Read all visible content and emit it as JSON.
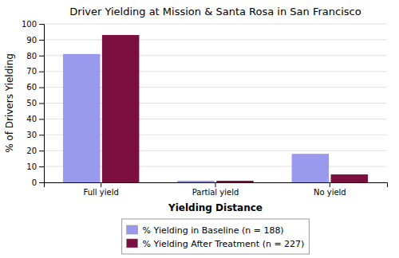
{
  "chart_data": {
    "type": "bar",
    "title": "Driver Yielding at Mission & Santa Rosa in San Francisco",
    "xlabel": "Yielding Distance",
    "ylabel": "% of Drivers Yielding",
    "categories": [
      "Full yield",
      "Partial yield",
      "No yield"
    ],
    "series": [
      {
        "name": "% Yielding in Baseline (n = 188)",
        "color": "#9999ee",
        "values": [
          81,
          1,
          18
        ]
      },
      {
        "name": "% Yielding After Treatment (n = 227)",
        "color": "#7b1040",
        "values": [
          93,
          1,
          5
        ]
      }
    ],
    "ylim": [
      0,
      100
    ],
    "yticks": [
      0,
      10,
      20,
      30,
      40,
      50,
      60,
      70,
      80,
      90,
      100
    ],
    "grid": true,
    "legend": "bottom"
  }
}
